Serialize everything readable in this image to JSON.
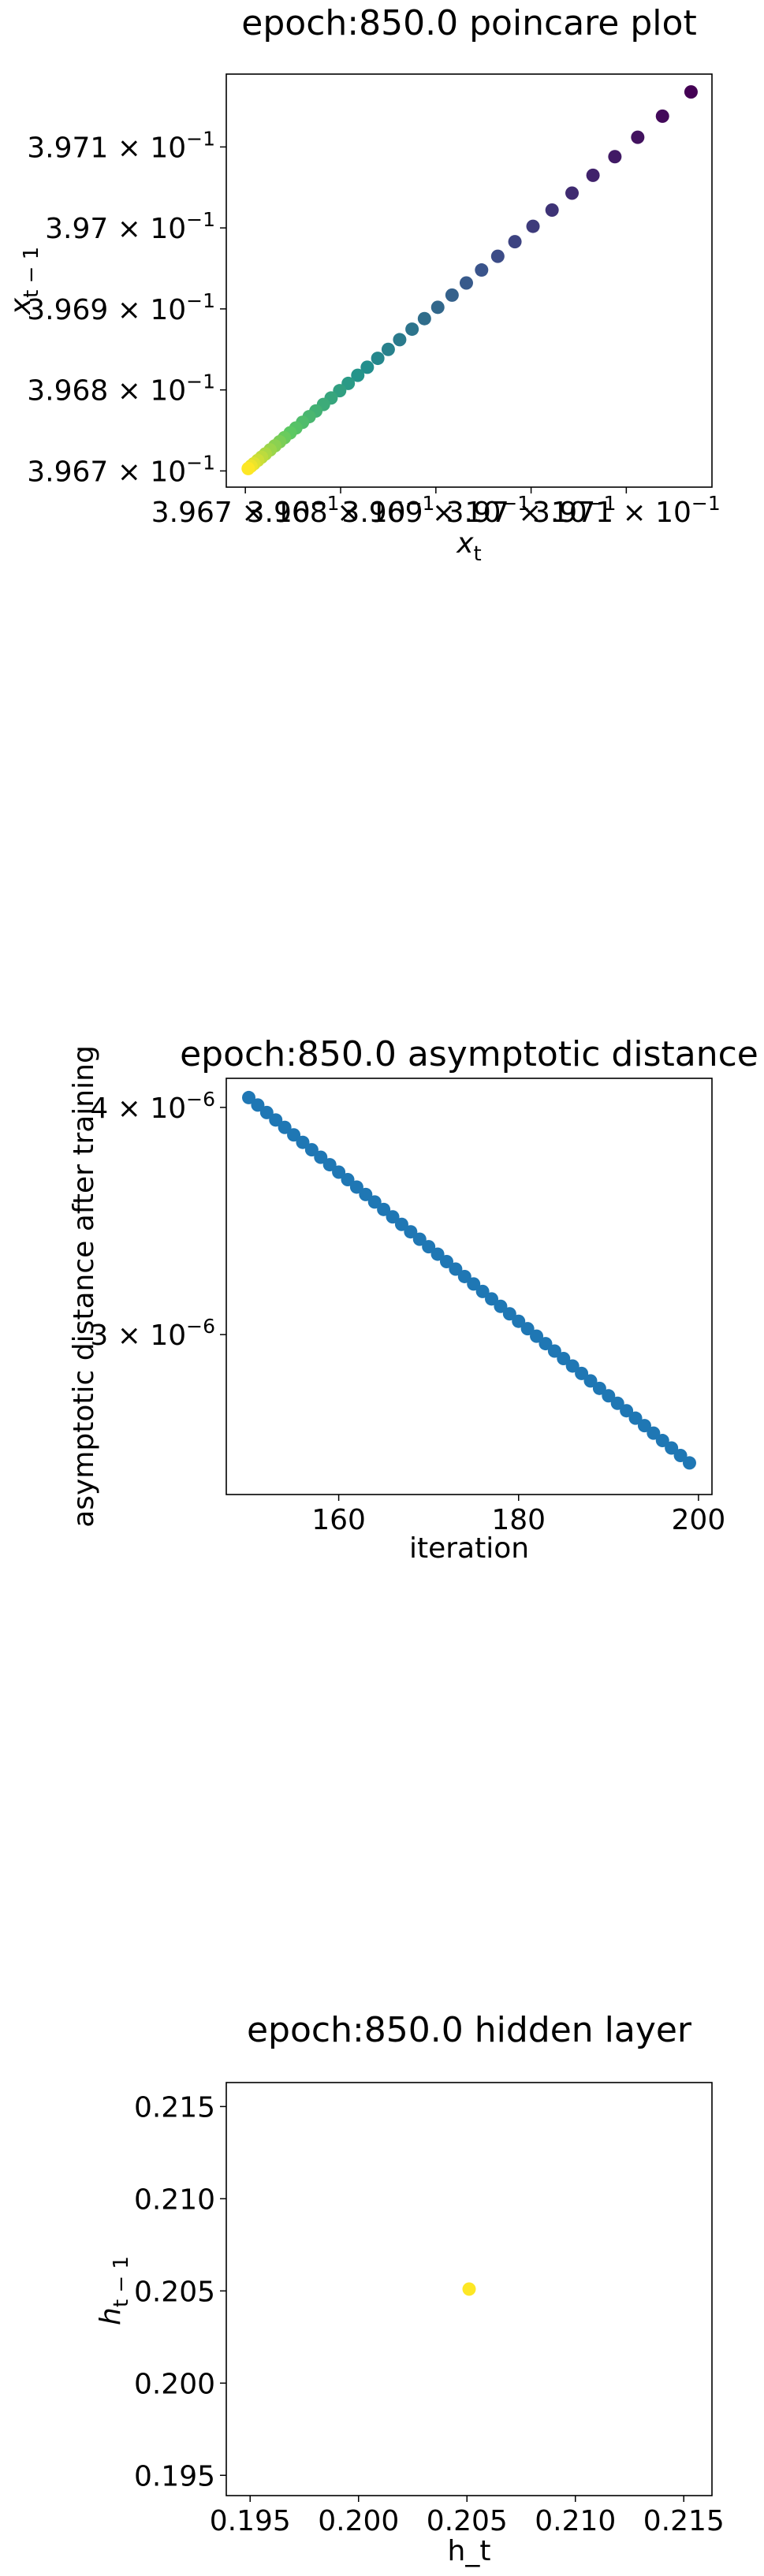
{
  "chart_data": [
    {
      "type": "scatter",
      "title": "epoch:850.0 poincare plot",
      "xlabel": "x_t",
      "ylabel": "x_{t-1}",
      "scale": "log",
      "xlim": [
        0.39668,
        0.39719
      ],
      "ylim": [
        0.39668,
        0.39719
      ],
      "x_ticks": [
        {
          "value": 0.3967,
          "mantissa": "3.967",
          "exp": "−1"
        },
        {
          "value": 0.3968,
          "mantissa": "3.968",
          "exp": "−1"
        },
        {
          "value": 0.3969,
          "mantissa": "3.969",
          "exp": "−1"
        },
        {
          "value": 0.397,
          "mantissa": "3.97",
          "exp": "−1"
        },
        {
          "value": 0.3971,
          "mantissa": "3.971",
          "exp": "−1"
        }
      ],
      "y_ticks": [
        {
          "value": 0.3967,
          "mantissa": "3.967",
          "exp": "−1"
        },
        {
          "value": 0.3968,
          "mantissa": "3.968",
          "exp": "−1"
        },
        {
          "value": 0.3969,
          "mantissa": "3.969",
          "exp": "−1"
        },
        {
          "value": 0.397,
          "mantissa": "3.97",
          "exp": "−1"
        },
        {
          "value": 0.3971,
          "mantissa": "3.971",
          "exp": "−1"
        }
      ],
      "colormap": "viridis",
      "marker_color": "#440154",
      "points": [
        [
          0.397168,
          0.397168
        ],
        [
          0.397138,
          0.397138
        ],
        [
          0.397112,
          0.397112
        ],
        [
          0.397088,
          0.397088
        ],
        [
          0.397065,
          0.397065
        ],
        [
          0.397043,
          0.397043
        ],
        [
          0.397022,
          0.397022
        ],
        [
          0.397002,
          0.397002
        ],
        [
          0.396983,
          0.396983
        ],
        [
          0.396965,
          0.396965
        ],
        [
          0.396948,
          0.396948
        ],
        [
          0.396932,
          0.396932
        ],
        [
          0.396917,
          0.396917
        ],
        [
          0.396902,
          0.396902
        ],
        [
          0.396888,
          0.396888
        ],
        [
          0.396875,
          0.396875
        ],
        [
          0.396862,
          0.396862
        ],
        [
          0.39685,
          0.39685
        ],
        [
          0.396839,
          0.396839
        ],
        [
          0.396828,
          0.396828
        ],
        [
          0.396818,
          0.396818
        ],
        [
          0.396808,
          0.396808
        ],
        [
          0.396799,
          0.396799
        ],
        [
          0.39679,
          0.39679
        ],
        [
          0.396782,
          0.396782
        ],
        [
          0.396774,
          0.396774
        ],
        [
          0.396767,
          0.396767
        ],
        [
          0.39676,
          0.39676
        ],
        [
          0.396753,
          0.396753
        ],
        [
          0.396747,
          0.396747
        ],
        [
          0.396741,
          0.396741
        ],
        [
          0.396736,
          0.396736
        ],
        [
          0.396731,
          0.396731
        ],
        [
          0.396726,
          0.396726
        ],
        [
          0.396721,
          0.396721
        ],
        [
          0.396717,
          0.396717
        ],
        [
          0.396713,
          0.396713
        ],
        [
          0.396709,
          0.396709
        ],
        [
          0.396706,
          0.396706
        ],
        [
          0.396703,
          0.396703
        ]
      ]
    },
    {
      "type": "scatter",
      "title": "epoch:850.0 asymptotic distance",
      "xlabel": "iteration",
      "ylabel": "asymptotic distance after training",
      "scale": "log-y",
      "xlim": [
        147.5,
        201.5
      ],
      "ylim": [
        2.45e-06,
        4.15e-06
      ],
      "x_ticks": [
        {
          "value": 160,
          "label": "160"
        },
        {
          "value": 180,
          "label": "180"
        },
        {
          "value": 200,
          "label": "200"
        }
      ],
      "y_ticks": [
        {
          "value": 4e-06,
          "mantissa": "4",
          "exp": "−6"
        },
        {
          "value": 3e-06,
          "mantissa": "3",
          "exp": "−6"
        }
      ],
      "marker_color": "#1f77b4",
      "x_start": 150,
      "x_end": 199,
      "y_start": 4.05e-06,
      "y_end": 2.55e-06
    },
    {
      "type": "scatter",
      "title": "epoch:850.0 hidden layer",
      "xlabel": "h_t",
      "ylabel": "h_{t-1}",
      "xlim": [
        0.1939,
        0.2163
      ],
      "ylim": [
        0.1939,
        0.2163
      ],
      "x_ticks": [
        {
          "value": 0.195,
          "label": "0.195"
        },
        {
          "value": 0.2,
          "label": "0.200"
        },
        {
          "value": 0.205,
          "label": "0.205"
        },
        {
          "value": 0.21,
          "label": "0.210"
        },
        {
          "value": 0.215,
          "label": "0.215"
        }
      ],
      "y_ticks": [
        {
          "value": 0.195,
          "label": "0.195"
        },
        {
          "value": 0.2,
          "label": "0.200"
        },
        {
          "value": 0.205,
          "label": "0.205"
        },
        {
          "value": 0.21,
          "label": "0.210"
        },
        {
          "value": 0.215,
          "label": "0.215"
        }
      ],
      "marker_color": "#fde725",
      "points": [
        [
          0.2051,
          0.2051
        ]
      ]
    }
  ]
}
